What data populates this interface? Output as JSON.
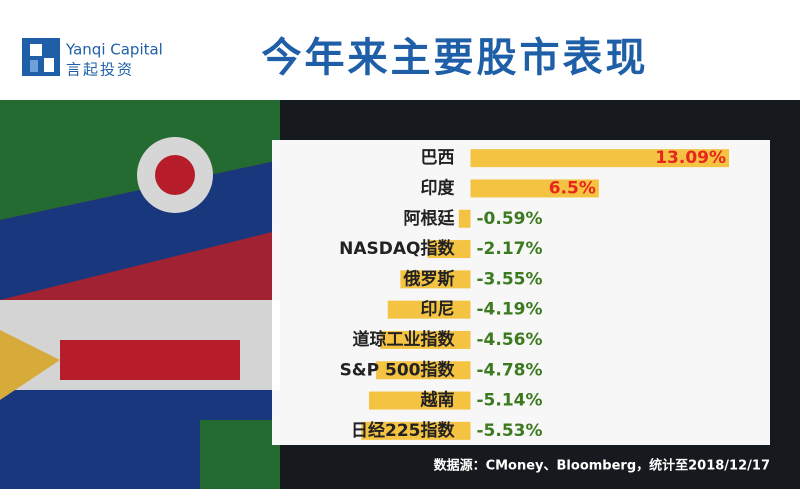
{
  "logo": {
    "name": "Yanqi Capital",
    "subtitle": "言起投资"
  },
  "chart_data": {
    "type": "bar",
    "orientation": "horizontal",
    "title": "今年来主要股市表现",
    "categories": [
      "巴西",
      "印度",
      "阿根廷",
      "NASDAQ指数",
      "俄罗斯",
      "印尼",
      "道琼工业指数",
      "S&P 500指数",
      "越南",
      "日经225指数"
    ],
    "values": [
      13.09,
      6.5,
      -0.59,
      -2.17,
      -3.55,
      -4.19,
      -4.56,
      -4.78,
      -5.14,
      -5.53
    ],
    "value_labels": [
      "13.09%",
      "6.5%",
      "-0.59%",
      "-2.17%",
      "-3.55%",
      "-4.19%",
      "-4.56%",
      "-4.78%",
      "-5.14%",
      "-5.53%"
    ],
    "color": "#f5c342",
    "label_colors": {
      "positive": "#e8251f",
      "negative": "#3b7a1f"
    },
    "xlim": [
      -6,
      14
    ],
    "source": "数据源：CMoney、Bloomberg，统计至2018/12/17"
  }
}
